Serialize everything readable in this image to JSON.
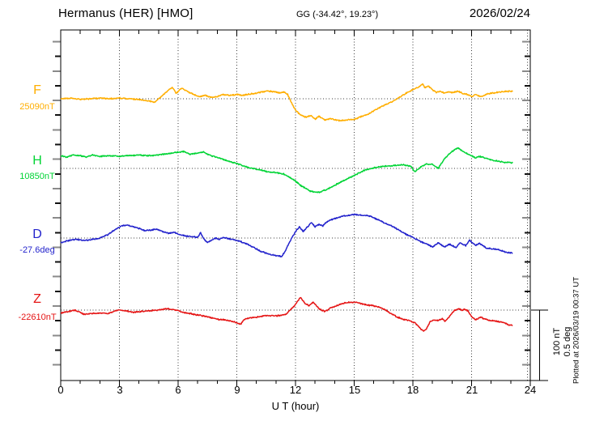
{
  "header": {
    "station_title": "Hermanus (HER)  [HMO]",
    "gg_coords": "GG (-34.42°,  19.23°)",
    "date": "2026/02/24"
  },
  "traces": [
    {
      "label": "F",
      "base_label": "25090nT",
      "color": "#FFAE00",
      "unit": "nT",
      "baseline_value": 25090
    },
    {
      "label": "H",
      "base_label": "10850nT",
      "color": "#00D435",
      "unit": "nT",
      "baseline_value": 10850
    },
    {
      "label": "D",
      "base_label": "-27.6deg",
      "color": "#2323CC",
      "unit": "deg",
      "baseline_value": -27.6
    },
    {
      "label": "Z",
      "base_label": "-22610nT",
      "color": "#E51414",
      "unit": "nT",
      "baseline_value": -22610
    }
  ],
  "x_axis": {
    "label": "U T (hour)",
    "ticks": [
      "0",
      "3",
      "6",
      "9",
      "12",
      "15",
      "18",
      "21",
      "24"
    ],
    "range_hours": [
      0,
      24
    ]
  },
  "scale_bar": {
    "line1": "100 nT",
    "line2": "0.5 deg",
    "nT": 100,
    "deg": 0.5
  },
  "footer_right": "Plotted at 2026/03/19 00:37 UT",
  "chart_data": {
    "type": "line",
    "title": "Hermanus (HER) [HMO] magnetogram 2026/02/24",
    "xlabel": "U T (hour)",
    "x_range": [
      0,
      24
    ],
    "x_gridlines_hours": [
      3,
      6,
      9,
      12,
      15,
      18,
      21,
      24
    ],
    "grid": "dotted",
    "vertical_scale": {
      "nT_per_bar": 100,
      "deg_per_bar": 0.5
    },
    "series": [
      {
        "name": "F",
        "unit": "nT",
        "base": 25090,
        "color": "#FFAE00",
        "points_hour_delta": [
          [
            0,
            0
          ],
          [
            0.5,
            1
          ],
          [
            1,
            -1
          ],
          [
            1.5,
            0
          ],
          [
            2,
            1
          ],
          [
            2.5,
            0
          ],
          [
            3,
            1
          ],
          [
            3.5,
            0
          ],
          [
            4,
            -1
          ],
          [
            4.5,
            -3
          ],
          [
            4.8,
            -5
          ],
          [
            5.1,
            2
          ],
          [
            5.4,
            10
          ],
          [
            5.7,
            16
          ],
          [
            5.9,
            8
          ],
          [
            6.2,
            15
          ],
          [
            6.5,
            10
          ],
          [
            6.8,
            6
          ],
          [
            7.1,
            3
          ],
          [
            7.4,
            5
          ],
          [
            7.7,
            2
          ],
          [
            8,
            3
          ],
          [
            8.3,
            6
          ],
          [
            8.6,
            5
          ],
          [
            9,
            6
          ],
          [
            9.3,
            5
          ],
          [
            9.7,
            7
          ],
          [
            10,
            8
          ],
          [
            10.3,
            10
          ],
          [
            10.6,
            11
          ],
          [
            10.9,
            10
          ],
          [
            11.2,
            8
          ],
          [
            11.4,
            10
          ],
          [
            11.6,
            6
          ],
          [
            11.8,
            -6
          ],
          [
            12,
            -16
          ],
          [
            12.2,
            -22
          ],
          [
            12.5,
            -26
          ],
          [
            12.8,
            -24
          ],
          [
            13,
            -29
          ],
          [
            13.2,
            -25
          ],
          [
            13.5,
            -30
          ],
          [
            13.8,
            -28
          ],
          [
            14,
            -30
          ],
          [
            14.3,
            -31
          ],
          [
            14.7,
            -30
          ],
          [
            15,
            -29
          ],
          [
            15.3,
            -26
          ],
          [
            15.7,
            -22
          ],
          [
            16,
            -17
          ],
          [
            16.4,
            -11
          ],
          [
            16.8,
            -6
          ],
          [
            17.2,
            0
          ],
          [
            17.6,
            7
          ],
          [
            18,
            13
          ],
          [
            18.3,
            17
          ],
          [
            18.5,
            21
          ],
          [
            18.6,
            16
          ],
          [
            18.8,
            18
          ],
          [
            19,
            13
          ],
          [
            19.2,
            9
          ],
          [
            19.4,
            11
          ],
          [
            19.6,
            8
          ],
          [
            19.8,
            10
          ],
          [
            20,
            9
          ],
          [
            20.3,
            11
          ],
          [
            20.5,
            8
          ],
          [
            20.8,
            6
          ],
          [
            21,
            3
          ],
          [
            21.2,
            6
          ],
          [
            21.5,
            3
          ],
          [
            21.8,
            7
          ],
          [
            22,
            8
          ],
          [
            22.3,
            9
          ],
          [
            22.6,
            10
          ],
          [
            23.1,
            11
          ]
        ]
      },
      {
        "name": "H",
        "unit": "nT",
        "base": 10850,
        "color": "#00D435",
        "points_hour_delta": [
          [
            0,
            18
          ],
          [
            0.3,
            16
          ],
          [
            0.6,
            19
          ],
          [
            1,
            18
          ],
          [
            1.3,
            16
          ],
          [
            1.6,
            19
          ],
          [
            2,
            17
          ],
          [
            2.5,
            18
          ],
          [
            3,
            17
          ],
          [
            3.5,
            18
          ],
          [
            4,
            19
          ],
          [
            4.5,
            18
          ],
          [
            5,
            19
          ],
          [
            5.5,
            21
          ],
          [
            6,
            23
          ],
          [
            6.3,
            24
          ],
          [
            6.6,
            20
          ],
          [
            7,
            22
          ],
          [
            7.3,
            23
          ],
          [
            7.7,
            18
          ],
          [
            8.1,
            15
          ],
          [
            8.5,
            11
          ],
          [
            9,
            7
          ],
          [
            9.4,
            3
          ],
          [
            9.8,
            0
          ],
          [
            10.2,
            -2
          ],
          [
            10.6,
            -5
          ],
          [
            11,
            -6
          ],
          [
            11.4,
            -8
          ],
          [
            11.9,
            -16
          ],
          [
            12.3,
            -25
          ],
          [
            12.8,
            -33
          ],
          [
            13.2,
            -34
          ],
          [
            13.6,
            -30
          ],
          [
            14,
            -24
          ],
          [
            14.5,
            -17
          ],
          [
            15,
            -10
          ],
          [
            15.5,
            -3
          ],
          [
            16,
            1
          ],
          [
            16.5,
            3
          ],
          [
            17,
            4
          ],
          [
            17.5,
            5
          ],
          [
            17.9,
            3
          ],
          [
            18.1,
            -5
          ],
          [
            18.4,
            2
          ],
          [
            18.7,
            6
          ],
          [
            19,
            6
          ],
          [
            19.3,
            0
          ],
          [
            19.6,
            13
          ],
          [
            20,
            24
          ],
          [
            20.3,
            29
          ],
          [
            20.6,
            23
          ],
          [
            21,
            18
          ],
          [
            21.2,
            15
          ],
          [
            21.4,
            17
          ],
          [
            21.8,
            14
          ],
          [
            22.2,
            11
          ],
          [
            22.6,
            9
          ],
          [
            23.1,
            8
          ]
        ]
      },
      {
        "name": "D",
        "unit": "deg",
        "base": -27.6,
        "color": "#2323CC",
        "points_hour_delta": [
          [
            0,
            -0.034
          ],
          [
            0.4,
            -0.017
          ],
          [
            0.8,
            -0.009
          ],
          [
            1.2,
            -0.017
          ],
          [
            1.6,
            -0.011
          ],
          [
            2,
            0
          ],
          [
            2.4,
            0.023
          ],
          [
            2.8,
            0.063
          ],
          [
            3.1,
            0.086
          ],
          [
            3.4,
            0.092
          ],
          [
            3.7,
            0.08
          ],
          [
            4,
            0.069
          ],
          [
            4.3,
            0.052
          ],
          [
            4.6,
            0.057
          ],
          [
            4.9,
            0.063
          ],
          [
            5.2,
            0.046
          ],
          [
            5.5,
            0.034
          ],
          [
            5.8,
            0.04
          ],
          [
            6.1,
            0.023
          ],
          [
            6.4,
            0.014
          ],
          [
            6.7,
            0.009
          ],
          [
            7,
            0.006
          ],
          [
            7.15,
            0.04
          ],
          [
            7.3,
            -0.006
          ],
          [
            7.5,
            -0.032
          ],
          [
            7.7,
            -0.017
          ],
          [
            7.9,
            0
          ],
          [
            8.1,
            -0.011
          ],
          [
            8.3,
            0.006
          ],
          [
            8.6,
            -0.006
          ],
          [
            9,
            -0.017
          ],
          [
            9.4,
            -0.034
          ],
          [
            9.8,
            -0.063
          ],
          [
            10.2,
            -0.092
          ],
          [
            10.6,
            -0.112
          ],
          [
            11,
            -0.126
          ],
          [
            11.3,
            -0.132
          ],
          [
            11.5,
            -0.086
          ],
          [
            11.7,
            -0.029
          ],
          [
            11.85,
            0.011
          ],
          [
            12,
            0.046
          ],
          [
            12.2,
            0.08
          ],
          [
            12.4,
            0.046
          ],
          [
            12.8,
            0.109
          ],
          [
            13,
            0.08
          ],
          [
            13.2,
            0.098
          ],
          [
            13.4,
            0.086
          ],
          [
            13.6,
            0.115
          ],
          [
            14,
            0.138
          ],
          [
            14.4,
            0.155
          ],
          [
            14.7,
            0.161
          ],
          [
            15,
            0.167
          ],
          [
            15.3,
            0.164
          ],
          [
            15.8,
            0.155
          ],
          [
            16.2,
            0.132
          ],
          [
            16.6,
            0.103
          ],
          [
            17,
            0.08
          ],
          [
            17.4,
            0.046
          ],
          [
            17.8,
            0.017
          ],
          [
            18.2,
            -0.011
          ],
          [
            18.7,
            -0.044
          ],
          [
            19,
            -0.063
          ],
          [
            19.3,
            -0.034
          ],
          [
            19.6,
            -0.063
          ],
          [
            19.9,
            -0.044
          ],
          [
            20.2,
            -0.069
          ],
          [
            20.4,
            -0.034
          ],
          [
            20.7,
            -0.054
          ],
          [
            20.9,
            -0.015
          ],
          [
            21.2,
            -0.054
          ],
          [
            21.4,
            -0.038
          ],
          [
            21.8,
            -0.073
          ],
          [
            22.3,
            -0.079
          ],
          [
            22.5,
            -0.088
          ],
          [
            22.8,
            -0.102
          ],
          [
            23.1,
            -0.107
          ]
        ]
      },
      {
        "name": "Z",
        "unit": "nT",
        "base": -22610,
        "color": "#E51414",
        "points_hour_delta": [
          [
            0,
            -4
          ],
          [
            0.4,
            -2
          ],
          [
            0.75,
            0
          ],
          [
            1.2,
            -6
          ],
          [
            1.6,
            -5
          ],
          [
            2,
            -4
          ],
          [
            2.4,
            -5
          ],
          [
            2.8,
            -1
          ],
          [
            3,
            0
          ],
          [
            3.3,
            -1
          ],
          [
            3.7,
            -3
          ],
          [
            4.1,
            -2
          ],
          [
            4.5,
            -1
          ],
          [
            5,
            0
          ],
          [
            5.4,
            2
          ],
          [
            5.7,
            1
          ],
          [
            6,
            -1
          ],
          [
            6.4,
            -4
          ],
          [
            6.8,
            -6
          ],
          [
            7.2,
            -8
          ],
          [
            7.6,
            -10
          ],
          [
            8,
            -13
          ],
          [
            8.4,
            -14
          ],
          [
            8.8,
            -16
          ],
          [
            9.2,
            -20
          ],
          [
            9.4,
            -13
          ],
          [
            9.7,
            -11
          ],
          [
            10,
            -10
          ],
          [
            10.4,
            -8
          ],
          [
            10.8,
            -8
          ],
          [
            11.2,
            -8
          ],
          [
            11.5,
            -6
          ],
          [
            11.8,
            2
          ],
          [
            12,
            8
          ],
          [
            12.25,
            18
          ],
          [
            12.5,
            9
          ],
          [
            12.7,
            6
          ],
          [
            12.9,
            11
          ],
          [
            13.2,
            2
          ],
          [
            13.5,
            -2
          ],
          [
            13.8,
            3
          ],
          [
            14.2,
            7
          ],
          [
            14.5,
            10
          ],
          [
            14.8,
            11
          ],
          [
            15.1,
            11
          ],
          [
            15.4,
            9
          ],
          [
            15.7,
            7
          ],
          [
            16,
            6
          ],
          [
            16.3,
            4
          ],
          [
            16.6,
            0
          ],
          [
            16.9,
            -5
          ],
          [
            17.2,
            -10
          ],
          [
            17.5,
            -13
          ],
          [
            17.8,
            -15
          ],
          [
            18.1,
            -18
          ],
          [
            18.3,
            -23
          ],
          [
            18.45,
            -28
          ],
          [
            18.55,
            -30
          ],
          [
            18.7,
            -26
          ],
          [
            18.9,
            -16
          ],
          [
            19.1,
            -14
          ],
          [
            19.3,
            -15
          ],
          [
            19.5,
            -12
          ],
          [
            19.65,
            -16
          ],
          [
            19.9,
            -8
          ],
          [
            20.1,
            -1
          ],
          [
            20.35,
            2
          ],
          [
            20.5,
            0
          ],
          [
            20.65,
            1
          ],
          [
            20.8,
            -1
          ],
          [
            21,
            -9
          ],
          [
            21.2,
            -14
          ],
          [
            21.45,
            -10
          ],
          [
            21.7,
            -13
          ],
          [
            22,
            -15
          ],
          [
            22.3,
            -16
          ],
          [
            22.6,
            -17
          ],
          [
            22.9,
            -21
          ],
          [
            23.1,
            -22
          ]
        ]
      }
    ]
  }
}
